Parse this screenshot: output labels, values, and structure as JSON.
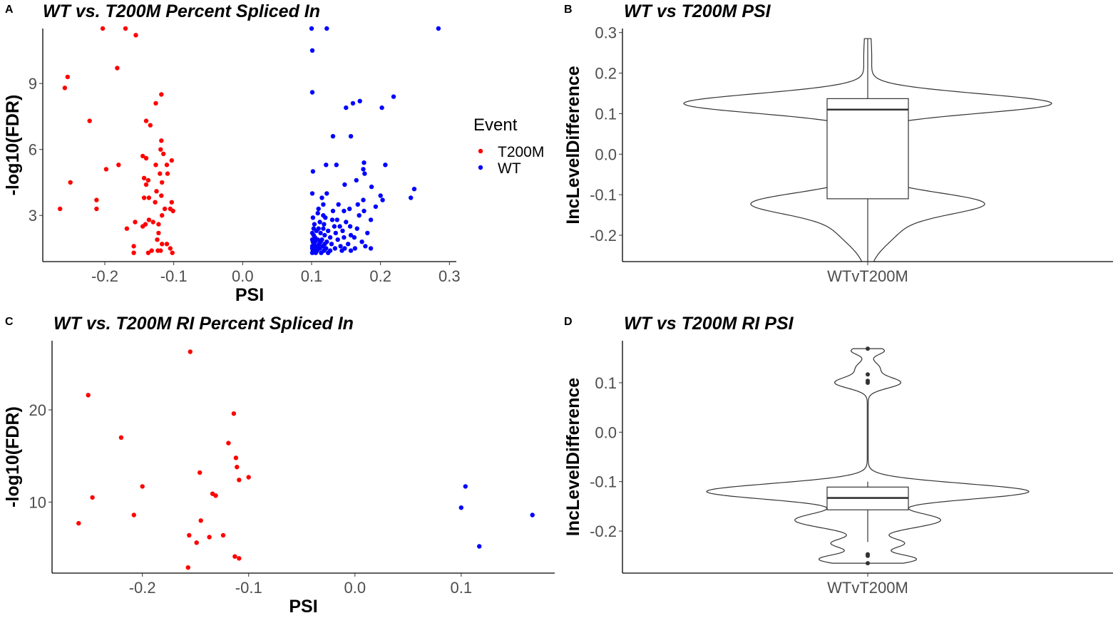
{
  "panels": [
    {
      "letter": "A",
      "title": "WT vs. T200M Percent Spliced In"
    },
    {
      "letter": "B",
      "title": "WT vs T200M PSI"
    },
    {
      "letter": "C",
      "title": "WT vs. T200M RI Percent Spliced In"
    },
    {
      "letter": "D",
      "title": "WT vs T200M RI PSI"
    }
  ],
  "legend": {
    "title": "Event",
    "items": [
      {
        "label": "T200M",
        "color": "#ff0000"
      },
      {
        "label": "WT",
        "color": "#0000ff"
      }
    ]
  },
  "chart_data": [
    {
      "type": "scatter",
      "title": "WT vs. T200M Percent Spliced In",
      "xlabel": "PSI",
      "ylabel": "-log10(FDR)",
      "xlim": [
        -0.29,
        0.31
      ],
      "ylim": [
        0.9,
        11.5
      ],
      "xticks": [
        -0.2,
        -0.1,
        0.0,
        0.1,
        0.2,
        0.3
      ],
      "xtick_labels": [
        "-0.2",
        "-0.1",
        "0.0",
        "0.1",
        "0.2",
        "0.3"
      ],
      "yticks": [
        3,
        6,
        9
      ],
      "ytick_labels": [
        "3",
        "6",
        "9"
      ],
      "legend": {
        "title": "Event",
        "position": "right"
      },
      "series": [
        {
          "name": "T200M",
          "color": "#ff0000",
          "points": [
            [
              -0.203,
              11.5
            ],
            [
              -0.17,
              11.5
            ],
            [
              -0.155,
              11.2
            ],
            [
              -0.182,
              9.7
            ],
            [
              -0.254,
              9.3
            ],
            [
              -0.258,
              8.8
            ],
            [
              -0.118,
              8.5
            ],
            [
              -0.126,
              8.1
            ],
            [
              -0.222,
              7.3
            ],
            [
              -0.14,
              7.3
            ],
            [
              -0.134,
              7.1
            ],
            [
              -0.118,
              6.4
            ],
            [
              -0.119,
              6.0
            ],
            [
              -0.115,
              5.8
            ],
            [
              -0.145,
              5.7
            ],
            [
              -0.14,
              5.6
            ],
            [
              -0.103,
              5.5
            ],
            [
              -0.11,
              5.3
            ],
            [
              -0.18,
              5.3
            ],
            [
              -0.126,
              5.3
            ],
            [
              -0.198,
              5.1
            ],
            [
              -0.12,
              4.9
            ],
            [
              -0.109,
              4.9
            ],
            [
              -0.143,
              4.7
            ],
            [
              -0.137,
              4.6
            ],
            [
              -0.25,
              4.5
            ],
            [
              -0.117,
              4.5
            ],
            [
              -0.14,
              4.4
            ],
            [
              -0.125,
              4.1
            ],
            [
              -0.118,
              3.9
            ],
            [
              -0.136,
              3.8
            ],
            [
              -0.143,
              3.8
            ],
            [
              -0.212,
              3.7
            ],
            [
              -0.103,
              3.6
            ],
            [
              -0.127,
              3.6
            ],
            [
              -0.265,
              3.3
            ],
            [
              -0.212,
              3.3
            ],
            [
              -0.113,
              3.3
            ],
            [
              -0.105,
              3.3
            ],
            [
              -0.101,
              3.2
            ],
            [
              -0.117,
              3.0
            ],
            [
              -0.136,
              2.8
            ],
            [
              -0.156,
              2.7
            ],
            [
              -0.13,
              2.7
            ],
            [
              -0.141,
              2.6
            ],
            [
              -0.122,
              2.6
            ],
            [
              -0.145,
              2.5
            ],
            [
              -0.168,
              2.4
            ],
            [
              -0.122,
              2.2
            ],
            [
              -0.124,
              1.9
            ],
            [
              -0.117,
              1.7
            ],
            [
              -0.11,
              1.7
            ],
            [
              -0.158,
              1.6
            ],
            [
              -0.105,
              1.5
            ],
            [
              -0.132,
              1.4
            ],
            [
              -0.123,
              1.4
            ],
            [
              -0.119,
              1.4
            ],
            [
              -0.137,
              1.3
            ],
            [
              -0.158,
              1.3
            ],
            [
              -0.102,
              1.3
            ]
          ]
        },
        {
          "name": "WT",
          "color": "#0000ff",
          "points": [
            [
              0.1,
              11.5
            ],
            [
              0.122,
              11.5
            ],
            [
              0.284,
              11.5
            ],
            [
              0.101,
              10.5
            ],
            [
              0.101,
              8.6
            ],
            [
              0.219,
              8.4
            ],
            [
              0.17,
              8.2
            ],
            [
              0.16,
              8.1
            ],
            [
              0.202,
              7.9
            ],
            [
              0.15,
              7.9
            ],
            [
              0.131,
              6.6
            ],
            [
              0.157,
              6.6
            ],
            [
              0.176,
              5.4
            ],
            [
              0.121,
              5.3
            ],
            [
              0.136,
              5.3
            ],
            [
              0.207,
              5.3
            ],
            [
              0.175,
              5.1
            ],
            [
              0.102,
              5.0
            ],
            [
              0.177,
              4.9
            ],
            [
              0.165,
              4.6
            ],
            [
              0.148,
              4.4
            ],
            [
              0.187,
              4.3
            ],
            [
              0.249,
              4.2
            ],
            [
              0.101,
              4.0
            ],
            [
              0.122,
              4.0
            ],
            [
              0.2,
              3.9
            ],
            [
              0.115,
              3.8
            ],
            [
              0.244,
              3.8
            ],
            [
              0.175,
              3.7
            ],
            [
              0.203,
              3.7
            ],
            [
              0.117,
              3.5
            ],
            [
              0.167,
              3.5
            ],
            [
              0.139,
              3.5
            ],
            [
              0.11,
              3.3
            ],
            [
              0.193,
              3.4
            ],
            [
              0.155,
              3.3
            ],
            [
              0.176,
              3.2
            ],
            [
              0.131,
              3.2
            ],
            [
              0.147,
              3.2
            ],
            [
              0.109,
              3.1
            ],
            [
              0.169,
              3.0
            ],
            [
              0.117,
              3.0
            ],
            [
              0.12,
              2.9
            ],
            [
              0.102,
              2.9
            ],
            [
              0.137,
              2.8
            ],
            [
              0.13,
              2.8
            ],
            [
              0.186,
              2.8
            ],
            [
              0.112,
              2.7
            ],
            [
              0.15,
              2.7
            ],
            [
              0.104,
              2.6
            ],
            [
              0.118,
              2.6
            ],
            [
              0.156,
              2.5
            ],
            [
              0.133,
              2.5
            ],
            [
              0.141,
              2.5
            ],
            [
              0.103,
              2.4
            ],
            [
              0.117,
              2.4
            ],
            [
              0.166,
              2.4
            ],
            [
              0.107,
              2.3
            ],
            [
              0.124,
              2.3
            ],
            [
              0.145,
              2.3
            ],
            [
              0.181,
              2.2
            ],
            [
              0.101,
              2.2
            ],
            [
              0.113,
              2.2
            ],
            [
              0.135,
              2.2
            ],
            [
              0.157,
              2.1
            ],
            [
              0.103,
              2.1
            ],
            [
              0.119,
              2.1
            ],
            [
              0.127,
              2.0
            ],
            [
              0.147,
              2.0
            ],
            [
              0.162,
              2.0
            ],
            [
              0.109,
              1.9
            ],
            [
              0.101,
              1.9
            ],
            [
              0.115,
              1.9
            ],
            [
              0.138,
              1.9
            ],
            [
              0.105,
              1.8
            ],
            [
              0.122,
              1.8
            ],
            [
              0.173,
              1.8
            ],
            [
              0.102,
              1.8
            ],
            [
              0.111,
              1.7
            ],
            [
              0.129,
              1.7
            ],
            [
              0.153,
              1.7
            ],
            [
              0.101,
              1.6
            ],
            [
              0.107,
              1.6
            ],
            [
              0.116,
              1.6
            ],
            [
              0.142,
              1.6
            ],
            [
              0.178,
              1.6
            ],
            [
              0.101,
              1.5
            ],
            [
              0.104,
              1.5
            ],
            [
              0.112,
              1.5
            ],
            [
              0.121,
              1.5
            ],
            [
              0.134,
              1.5
            ],
            [
              0.148,
              1.5
            ],
            [
              0.163,
              1.5
            ],
            [
              0.102,
              1.4
            ],
            [
              0.108,
              1.4
            ],
            [
              0.118,
              1.4
            ],
            [
              0.127,
              1.4
            ],
            [
              0.144,
              1.4
            ],
            [
              0.101,
              1.3
            ],
            [
              0.106,
              1.3
            ],
            [
              0.114,
              1.3
            ],
            [
              0.124,
              1.3
            ],
            [
              0.109,
              1.6
            ],
            [
              0.113,
              1.8
            ],
            [
              0.105,
              2.0
            ],
            [
              0.11,
              2.4
            ],
            [
              0.103,
              1.7
            ],
            [
              0.119,
              1.7
            ],
            [
              0.186,
              1.5
            ],
            [
              0.157,
              1.4
            ]
          ]
        }
      ]
    },
    {
      "type": "violin",
      "title": "WT vs T200M PSI",
      "xlabel": "WTvT200M",
      "ylabel": "IncLevelDifference",
      "ylim": [
        -0.265,
        0.31
      ],
      "yticks": [
        -0.2,
        -0.1,
        0.0,
        0.1,
        0.2,
        0.3
      ],
      "ytick_labels": [
        "-0.2",
        "-0.1",
        "0.0",
        "0.1",
        "0.2",
        "0.3"
      ],
      "category": "WTvT200M",
      "violin_range": [
        -0.265,
        0.285
      ],
      "box": {
        "lower_whisker": -0.265,
        "q1": -0.11,
        "median": 0.11,
        "q3": 0.137,
        "upper_whisker": 0.285
      },
      "outliers": []
    },
    {
      "type": "scatter",
      "title": "WT vs. T200M RI Percent Spliced In",
      "xlabel": "PSI",
      "ylabel": "-log10(FDR)",
      "xlim": [
        -0.285,
        0.188
      ],
      "ylim": [
        2.3,
        27.5
      ],
      "xticks": [
        -0.2,
        -0.1,
        0.0,
        0.1
      ],
      "xtick_labels": [
        "-0.2",
        "-0.1",
        "0.0",
        "0.1"
      ],
      "yticks": [
        10,
        20
      ],
      "ytick_labels": [
        "10",
        "20"
      ],
      "series": [
        {
          "name": "T200M",
          "color": "#ff0000",
          "points": [
            [
              -0.155,
              26.3
            ],
            [
              -0.251,
              21.6
            ],
            [
              -0.114,
              19.6
            ],
            [
              -0.22,
              17.0
            ],
            [
              -0.119,
              16.4
            ],
            [
              -0.112,
              14.8
            ],
            [
              -0.111,
              13.8
            ],
            [
              -0.146,
              13.2
            ],
            [
              -0.1,
              12.7
            ],
            [
              -0.109,
              12.4
            ],
            [
              -0.2,
              11.7
            ],
            [
              -0.134,
              10.9
            ],
            [
              -0.131,
              10.7
            ],
            [
              -0.247,
              10.5
            ],
            [
              -0.208,
              8.6
            ],
            [
              -0.145,
              8.0
            ],
            [
              -0.26,
              7.7
            ],
            [
              -0.156,
              6.4
            ],
            [
              -0.124,
              6.4
            ],
            [
              -0.137,
              6.2
            ],
            [
              -0.149,
              5.6
            ],
            [
              -0.113,
              4.1
            ],
            [
              -0.109,
              3.9
            ],
            [
              -0.157,
              2.9
            ]
          ]
        },
        {
          "name": "WT",
          "color": "#0000ff",
          "points": [
            [
              0.104,
              11.7
            ],
            [
              0.1,
              9.4
            ],
            [
              0.167,
              8.6
            ],
            [
              0.117,
              5.2
            ]
          ]
        }
      ]
    },
    {
      "type": "violin",
      "title": "WT vs T200M RI PSI",
      "xlabel": "WTvT200M",
      "ylabel": "IncLevelDifference",
      "ylim": [
        -0.285,
        0.185
      ],
      "yticks": [
        -0.2,
        -0.1,
        0.0,
        0.1
      ],
      "ytick_labels": [
        "-0.2",
        "-0.1",
        "0.0",
        "0.1"
      ],
      "category": "WTvT200M",
      "violin_range": [
        -0.265,
        0.169
      ],
      "box": {
        "lower_whisker": -0.222,
        "q1": -0.157,
        "median": -0.133,
        "q3": -0.111,
        "upper_whisker": -0.1
      },
      "outliers": [
        0.169,
        0.117,
        0.104,
        0.1,
        -0.247,
        -0.25,
        -0.265
      ]
    }
  ]
}
